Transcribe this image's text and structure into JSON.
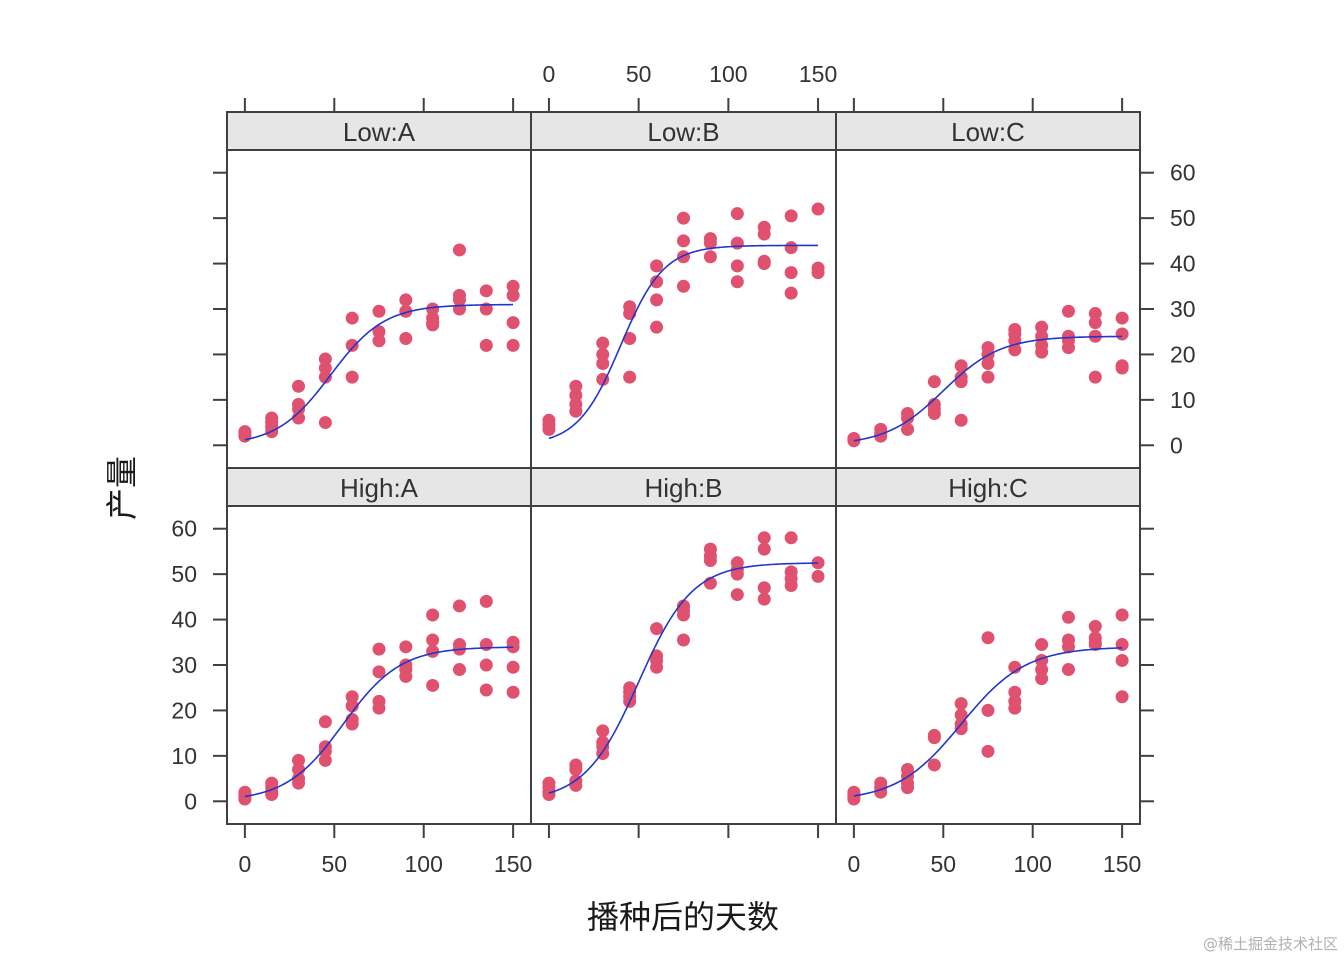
{
  "chart_data": {
    "type": "scatter",
    "layout": {
      "rows": 2,
      "cols": 3
    },
    "xlabel": "播种后的天数",
    "ylabel": "产量",
    "xlim": [
      -10,
      160
    ],
    "ylim": [
      -5,
      65
    ],
    "x_ticks": [
      0,
      50,
      100,
      150
    ],
    "y_ticks": [
      0,
      10,
      20,
      30,
      40,
      50,
      60
    ],
    "point_color": "#e0506f",
    "line_color": "#2236c9",
    "strip_color": "#e6e6e6",
    "panels": [
      {
        "label": "Low:A",
        "row": 0,
        "col": 0,
        "fit": {
          "asym": 31,
          "xmid": 48,
          "scal": 15,
          "x0": 0,
          "x1": 150
        },
        "points": [
          [
            0,
            3
          ],
          [
            0,
            2.5
          ],
          [
            0,
            2
          ],
          [
            15,
            6
          ],
          [
            15,
            5
          ],
          [
            15,
            4
          ],
          [
            15,
            3
          ],
          [
            30,
            13
          ],
          [
            30,
            9
          ],
          [
            30,
            8
          ],
          [
            30,
            6
          ],
          [
            45,
            19
          ],
          [
            45,
            17
          ],
          [
            45,
            15
          ],
          [
            45,
            5
          ],
          [
            60,
            28
          ],
          [
            60,
            22
          ],
          [
            60,
            15
          ],
          [
            75,
            29.5
          ],
          [
            75,
            25
          ],
          [
            75,
            23
          ],
          [
            90,
            32
          ],
          [
            90,
            29.5
          ],
          [
            90,
            23.5
          ],
          [
            105,
            30
          ],
          [
            105,
            28
          ],
          [
            105,
            27
          ],
          [
            105,
            26.5
          ],
          [
            120,
            43
          ],
          [
            120,
            33
          ],
          [
            120,
            32
          ],
          [
            120,
            30
          ],
          [
            135,
            34
          ],
          [
            135,
            30
          ],
          [
            135,
            22
          ],
          [
            150,
            35
          ],
          [
            150,
            33
          ],
          [
            150,
            27
          ],
          [
            150,
            22
          ]
        ]
      },
      {
        "label": "Low:B",
        "row": 0,
        "col": 1,
        "fit": {
          "asym": 44,
          "xmid": 40,
          "scal": 12,
          "x0": 0,
          "x1": 150
        },
        "points": [
          [
            0,
            5.5
          ],
          [
            0,
            4.5
          ],
          [
            0,
            3.5
          ],
          [
            15,
            13
          ],
          [
            15,
            11
          ],
          [
            15,
            9
          ],
          [
            15,
            7.5
          ],
          [
            30,
            22.5
          ],
          [
            30,
            20
          ],
          [
            30,
            18
          ],
          [
            30,
            14.5
          ],
          [
            45,
            30.5
          ],
          [
            45,
            29
          ],
          [
            45,
            23.5
          ],
          [
            45,
            15
          ],
          [
            60,
            39.5
          ],
          [
            60,
            36
          ],
          [
            60,
            32
          ],
          [
            60,
            26
          ],
          [
            75,
            50
          ],
          [
            75,
            45
          ],
          [
            75,
            41.5
          ],
          [
            75,
            35
          ],
          [
            90,
            45.5
          ],
          [
            90,
            44.5
          ],
          [
            90,
            41.5
          ],
          [
            105,
            51
          ],
          [
            105,
            44.5
          ],
          [
            105,
            39.5
          ],
          [
            105,
            36
          ],
          [
            120,
            48
          ],
          [
            120,
            46.5
          ],
          [
            120,
            40.5
          ],
          [
            120,
            40
          ],
          [
            135,
            50.5
          ],
          [
            135,
            43.5
          ],
          [
            135,
            38
          ],
          [
            135,
            33.5
          ],
          [
            150,
            52
          ],
          [
            150,
            39
          ],
          [
            150,
            38
          ]
        ]
      },
      {
        "label": "Low:C",
        "row": 0,
        "col": 2,
        "fit": {
          "asym": 24,
          "xmid": 50,
          "scal": 16,
          "x0": 0,
          "x1": 150
        },
        "points": [
          [
            0,
            1.5
          ],
          [
            0,
            1
          ],
          [
            15,
            3.5
          ],
          [
            15,
            2.5
          ],
          [
            15,
            2
          ],
          [
            30,
            7
          ],
          [
            30,
            6
          ],
          [
            30,
            3.5
          ],
          [
            45,
            14
          ],
          [
            45,
            9
          ],
          [
            45,
            8
          ],
          [
            45,
            7
          ],
          [
            60,
            17.5
          ],
          [
            60,
            15
          ],
          [
            60,
            14
          ],
          [
            60,
            5.5
          ],
          [
            75,
            21.5
          ],
          [
            75,
            20
          ],
          [
            75,
            18
          ],
          [
            75,
            15
          ],
          [
            90,
            25.5
          ],
          [
            90,
            24.5
          ],
          [
            90,
            23
          ],
          [
            90,
            21
          ],
          [
            105,
            26
          ],
          [
            105,
            24
          ],
          [
            105,
            22
          ],
          [
            105,
            20.5
          ],
          [
            120,
            29.5
          ],
          [
            120,
            24
          ],
          [
            120,
            23
          ],
          [
            120,
            21.5
          ],
          [
            135,
            29
          ],
          [
            135,
            27
          ],
          [
            135,
            24
          ],
          [
            135,
            15
          ],
          [
            150,
            28
          ],
          [
            150,
            24.5
          ],
          [
            150,
            17.5
          ],
          [
            150,
            17
          ]
        ]
      },
      {
        "label": "High:A",
        "row": 1,
        "col": 0,
        "fit": {
          "asym": 34,
          "xmid": 55,
          "scal": 16,
          "x0": 0,
          "x1": 150
        },
        "points": [
          [
            0,
            2
          ],
          [
            0,
            1.5
          ],
          [
            0,
            1
          ],
          [
            0,
            0.5
          ],
          [
            15,
            4
          ],
          [
            15,
            3
          ],
          [
            15,
            2
          ],
          [
            15,
            1.5
          ],
          [
            30,
            9
          ],
          [
            30,
            7
          ],
          [
            30,
            5
          ],
          [
            30,
            4
          ],
          [
            45,
            17.5
          ],
          [
            45,
            12
          ],
          [
            45,
            11
          ],
          [
            45,
            9
          ],
          [
            60,
            23
          ],
          [
            60,
            21
          ],
          [
            60,
            18
          ],
          [
            60,
            17
          ],
          [
            75,
            33.5
          ],
          [
            75,
            28.5
          ],
          [
            75,
            22
          ],
          [
            75,
            20.5
          ],
          [
            90,
            34
          ],
          [
            90,
            30
          ],
          [
            90,
            29
          ],
          [
            90,
            27.5
          ],
          [
            105,
            41
          ],
          [
            105,
            35.5
          ],
          [
            105,
            33
          ],
          [
            105,
            25.5
          ],
          [
            120,
            43
          ],
          [
            120,
            34.5
          ],
          [
            120,
            33.5
          ],
          [
            120,
            29
          ],
          [
            135,
            44
          ],
          [
            135,
            34.5
          ],
          [
            135,
            30
          ],
          [
            135,
            24.5
          ],
          [
            150,
            35
          ],
          [
            150,
            34
          ],
          [
            150,
            29.5
          ],
          [
            150,
            24
          ]
        ]
      },
      {
        "label": "High:B",
        "row": 1,
        "col": 1,
        "fit": {
          "asym": 52.5,
          "xmid": 50,
          "scal": 15,
          "x0": 0,
          "x1": 150
        },
        "points": [
          [
            0,
            4
          ],
          [
            0,
            3
          ],
          [
            0,
            2
          ],
          [
            0,
            1.5
          ],
          [
            15,
            8
          ],
          [
            15,
            7
          ],
          [
            15,
            4.5
          ],
          [
            15,
            3.5
          ],
          [
            30,
            15.5
          ],
          [
            30,
            13
          ],
          [
            30,
            12
          ],
          [
            30,
            10.5
          ],
          [
            45,
            25
          ],
          [
            45,
            24
          ],
          [
            45,
            23
          ],
          [
            45,
            22
          ],
          [
            60,
            38
          ],
          [
            60,
            32
          ],
          [
            60,
            31
          ],
          [
            60,
            29.5
          ],
          [
            75,
            43
          ],
          [
            75,
            42
          ],
          [
            75,
            41
          ],
          [
            75,
            35.5
          ],
          [
            90,
            55.5
          ],
          [
            90,
            54
          ],
          [
            90,
            53
          ],
          [
            90,
            48
          ],
          [
            105,
            52.5
          ],
          [
            105,
            51
          ],
          [
            105,
            50
          ],
          [
            105,
            45.5
          ],
          [
            120,
            58
          ],
          [
            120,
            55.5
          ],
          [
            120,
            47
          ],
          [
            120,
            44.5
          ],
          [
            135,
            58
          ],
          [
            135,
            50.5
          ],
          [
            135,
            49
          ],
          [
            135,
            47.5
          ],
          [
            150,
            52.5
          ],
          [
            150,
            49.5
          ]
        ]
      },
      {
        "label": "High:C",
        "row": 1,
        "col": 2,
        "fit": {
          "asym": 34,
          "xmid": 60,
          "scal": 18,
          "x0": 0,
          "x1": 150
        },
        "points": [
          [
            0,
            2
          ],
          [
            0,
            1.5
          ],
          [
            0,
            1
          ],
          [
            0,
            0.5
          ],
          [
            15,
            4
          ],
          [
            15,
            3
          ],
          [
            15,
            2
          ],
          [
            30,
            7
          ],
          [
            30,
            5.5
          ],
          [
            30,
            4
          ],
          [
            30,
            3
          ],
          [
            45,
            14.5
          ],
          [
            45,
            14
          ],
          [
            45,
            8
          ],
          [
            60,
            21.5
          ],
          [
            60,
            19
          ],
          [
            60,
            17
          ],
          [
            60,
            16
          ],
          [
            75,
            36
          ],
          [
            75,
            20
          ],
          [
            75,
            11
          ],
          [
            90,
            29.5
          ],
          [
            90,
            24
          ],
          [
            90,
            22
          ],
          [
            90,
            20.5
          ],
          [
            105,
            34.5
          ],
          [
            105,
            31
          ],
          [
            105,
            29
          ],
          [
            105,
            27
          ],
          [
            120,
            40.5
          ],
          [
            120,
            35.5
          ],
          [
            120,
            34
          ],
          [
            120,
            29
          ],
          [
            135,
            38.5
          ],
          [
            135,
            36
          ],
          [
            135,
            35
          ],
          [
            135,
            34.5
          ],
          [
            150,
            41
          ],
          [
            150,
            34.5
          ],
          [
            150,
            31
          ],
          [
            150,
            23
          ]
        ]
      }
    ]
  },
  "watermark": "@稀土掘金技术社区"
}
